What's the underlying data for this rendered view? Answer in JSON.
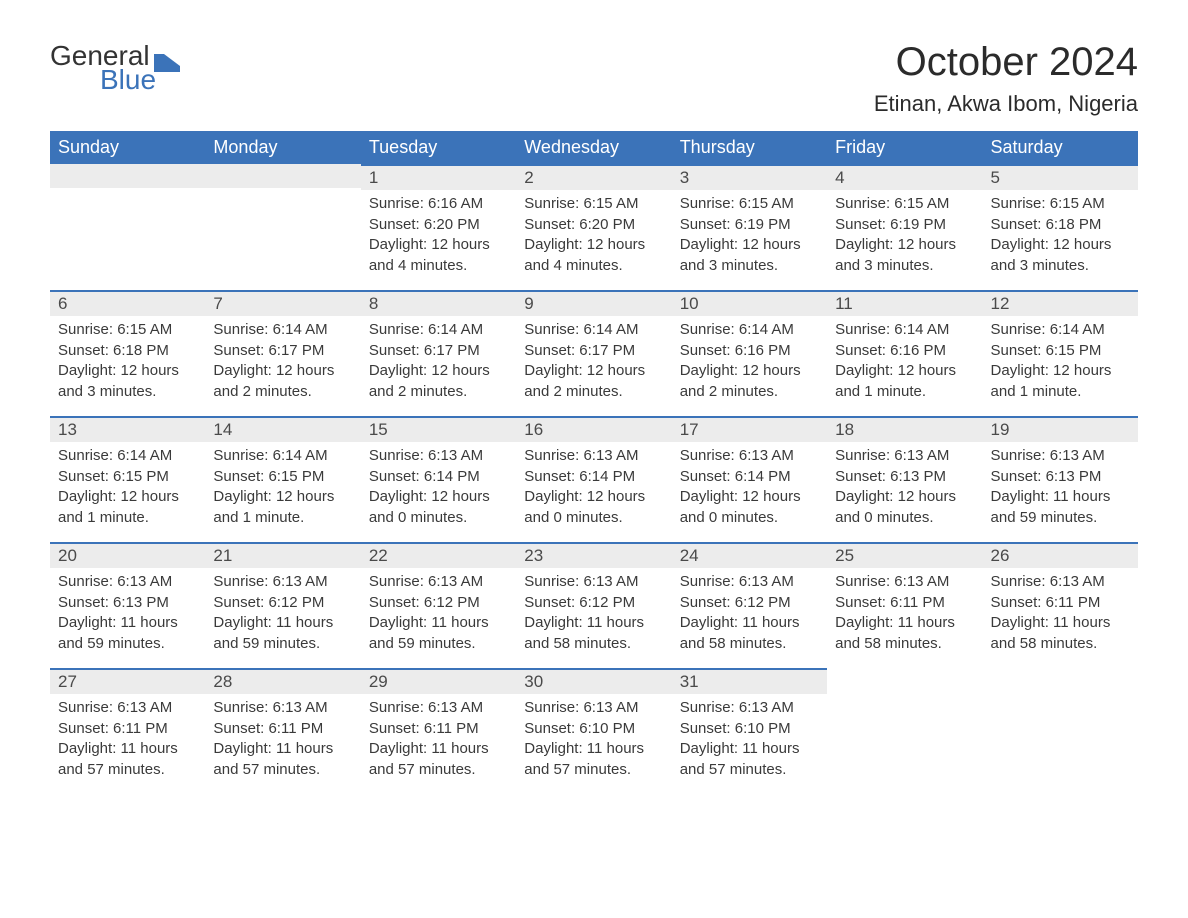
{
  "logo": {
    "text_general": "General",
    "text_blue": "Blue",
    "icon_color": "#3b73b9"
  },
  "header": {
    "month_title": "October 2024",
    "location": "Etinan, Akwa Ibom, Nigeria"
  },
  "colors": {
    "header_bg": "#3b73b9",
    "header_text": "#ffffff",
    "daynum_bg": "#ececec",
    "day_border": "#3b73b9",
    "body_text": "#3a3a3a",
    "background": "#ffffff"
  },
  "typography": {
    "title_fontsize": 40,
    "location_fontsize": 22,
    "weekday_fontsize": 18,
    "daynum_fontsize": 17,
    "body_fontsize": 15,
    "font_family": "Arial"
  },
  "calendar": {
    "type": "table",
    "columns": [
      "Sunday",
      "Monday",
      "Tuesday",
      "Wednesday",
      "Thursday",
      "Friday",
      "Saturday"
    ],
    "weeks": [
      [
        null,
        null,
        {
          "n": "1",
          "sr": "Sunrise: 6:16 AM",
          "ss": "Sunset: 6:20 PM",
          "d1": "Daylight: 12 hours",
          "d2": "and 4 minutes."
        },
        {
          "n": "2",
          "sr": "Sunrise: 6:15 AM",
          "ss": "Sunset: 6:20 PM",
          "d1": "Daylight: 12 hours",
          "d2": "and 4 minutes."
        },
        {
          "n": "3",
          "sr": "Sunrise: 6:15 AM",
          "ss": "Sunset: 6:19 PM",
          "d1": "Daylight: 12 hours",
          "d2": "and 3 minutes."
        },
        {
          "n": "4",
          "sr": "Sunrise: 6:15 AM",
          "ss": "Sunset: 6:19 PM",
          "d1": "Daylight: 12 hours",
          "d2": "and 3 minutes."
        },
        {
          "n": "5",
          "sr": "Sunrise: 6:15 AM",
          "ss": "Sunset: 6:18 PM",
          "d1": "Daylight: 12 hours",
          "d2": "and 3 minutes."
        }
      ],
      [
        {
          "n": "6",
          "sr": "Sunrise: 6:15 AM",
          "ss": "Sunset: 6:18 PM",
          "d1": "Daylight: 12 hours",
          "d2": "and 3 minutes."
        },
        {
          "n": "7",
          "sr": "Sunrise: 6:14 AM",
          "ss": "Sunset: 6:17 PM",
          "d1": "Daylight: 12 hours",
          "d2": "and 2 minutes."
        },
        {
          "n": "8",
          "sr": "Sunrise: 6:14 AM",
          "ss": "Sunset: 6:17 PM",
          "d1": "Daylight: 12 hours",
          "d2": "and 2 minutes."
        },
        {
          "n": "9",
          "sr": "Sunrise: 6:14 AM",
          "ss": "Sunset: 6:17 PM",
          "d1": "Daylight: 12 hours",
          "d2": "and 2 minutes."
        },
        {
          "n": "10",
          "sr": "Sunrise: 6:14 AM",
          "ss": "Sunset: 6:16 PM",
          "d1": "Daylight: 12 hours",
          "d2": "and 2 minutes."
        },
        {
          "n": "11",
          "sr": "Sunrise: 6:14 AM",
          "ss": "Sunset: 6:16 PM",
          "d1": "Daylight: 12 hours",
          "d2": "and 1 minute."
        },
        {
          "n": "12",
          "sr": "Sunrise: 6:14 AM",
          "ss": "Sunset: 6:15 PM",
          "d1": "Daylight: 12 hours",
          "d2": "and 1 minute."
        }
      ],
      [
        {
          "n": "13",
          "sr": "Sunrise: 6:14 AM",
          "ss": "Sunset: 6:15 PM",
          "d1": "Daylight: 12 hours",
          "d2": "and 1 minute."
        },
        {
          "n": "14",
          "sr": "Sunrise: 6:14 AM",
          "ss": "Sunset: 6:15 PM",
          "d1": "Daylight: 12 hours",
          "d2": "and 1 minute."
        },
        {
          "n": "15",
          "sr": "Sunrise: 6:13 AM",
          "ss": "Sunset: 6:14 PM",
          "d1": "Daylight: 12 hours",
          "d2": "and 0 minutes."
        },
        {
          "n": "16",
          "sr": "Sunrise: 6:13 AM",
          "ss": "Sunset: 6:14 PM",
          "d1": "Daylight: 12 hours",
          "d2": "and 0 minutes."
        },
        {
          "n": "17",
          "sr": "Sunrise: 6:13 AM",
          "ss": "Sunset: 6:14 PM",
          "d1": "Daylight: 12 hours",
          "d2": "and 0 minutes."
        },
        {
          "n": "18",
          "sr": "Sunrise: 6:13 AM",
          "ss": "Sunset: 6:13 PM",
          "d1": "Daylight: 12 hours",
          "d2": "and 0 minutes."
        },
        {
          "n": "19",
          "sr": "Sunrise: 6:13 AM",
          "ss": "Sunset: 6:13 PM",
          "d1": "Daylight: 11 hours",
          "d2": "and 59 minutes."
        }
      ],
      [
        {
          "n": "20",
          "sr": "Sunrise: 6:13 AM",
          "ss": "Sunset: 6:13 PM",
          "d1": "Daylight: 11 hours",
          "d2": "and 59 minutes."
        },
        {
          "n": "21",
          "sr": "Sunrise: 6:13 AM",
          "ss": "Sunset: 6:12 PM",
          "d1": "Daylight: 11 hours",
          "d2": "and 59 minutes."
        },
        {
          "n": "22",
          "sr": "Sunrise: 6:13 AM",
          "ss": "Sunset: 6:12 PM",
          "d1": "Daylight: 11 hours",
          "d2": "and 59 minutes."
        },
        {
          "n": "23",
          "sr": "Sunrise: 6:13 AM",
          "ss": "Sunset: 6:12 PM",
          "d1": "Daylight: 11 hours",
          "d2": "and 58 minutes."
        },
        {
          "n": "24",
          "sr": "Sunrise: 6:13 AM",
          "ss": "Sunset: 6:12 PM",
          "d1": "Daylight: 11 hours",
          "d2": "and 58 minutes."
        },
        {
          "n": "25",
          "sr": "Sunrise: 6:13 AM",
          "ss": "Sunset: 6:11 PM",
          "d1": "Daylight: 11 hours",
          "d2": "and 58 minutes."
        },
        {
          "n": "26",
          "sr": "Sunrise: 6:13 AM",
          "ss": "Sunset: 6:11 PM",
          "d1": "Daylight: 11 hours",
          "d2": "and 58 minutes."
        }
      ],
      [
        {
          "n": "27",
          "sr": "Sunrise: 6:13 AM",
          "ss": "Sunset: 6:11 PM",
          "d1": "Daylight: 11 hours",
          "d2": "and 57 minutes."
        },
        {
          "n": "28",
          "sr": "Sunrise: 6:13 AM",
          "ss": "Sunset: 6:11 PM",
          "d1": "Daylight: 11 hours",
          "d2": "and 57 minutes."
        },
        {
          "n": "29",
          "sr": "Sunrise: 6:13 AM",
          "ss": "Sunset: 6:11 PM",
          "d1": "Daylight: 11 hours",
          "d2": "and 57 minutes."
        },
        {
          "n": "30",
          "sr": "Sunrise: 6:13 AM",
          "ss": "Sunset: 6:10 PM",
          "d1": "Daylight: 11 hours",
          "d2": "and 57 minutes."
        },
        {
          "n": "31",
          "sr": "Sunrise: 6:13 AM",
          "ss": "Sunset: 6:10 PM",
          "d1": "Daylight: 11 hours",
          "d2": "and 57 minutes."
        },
        null,
        null
      ]
    ]
  }
}
